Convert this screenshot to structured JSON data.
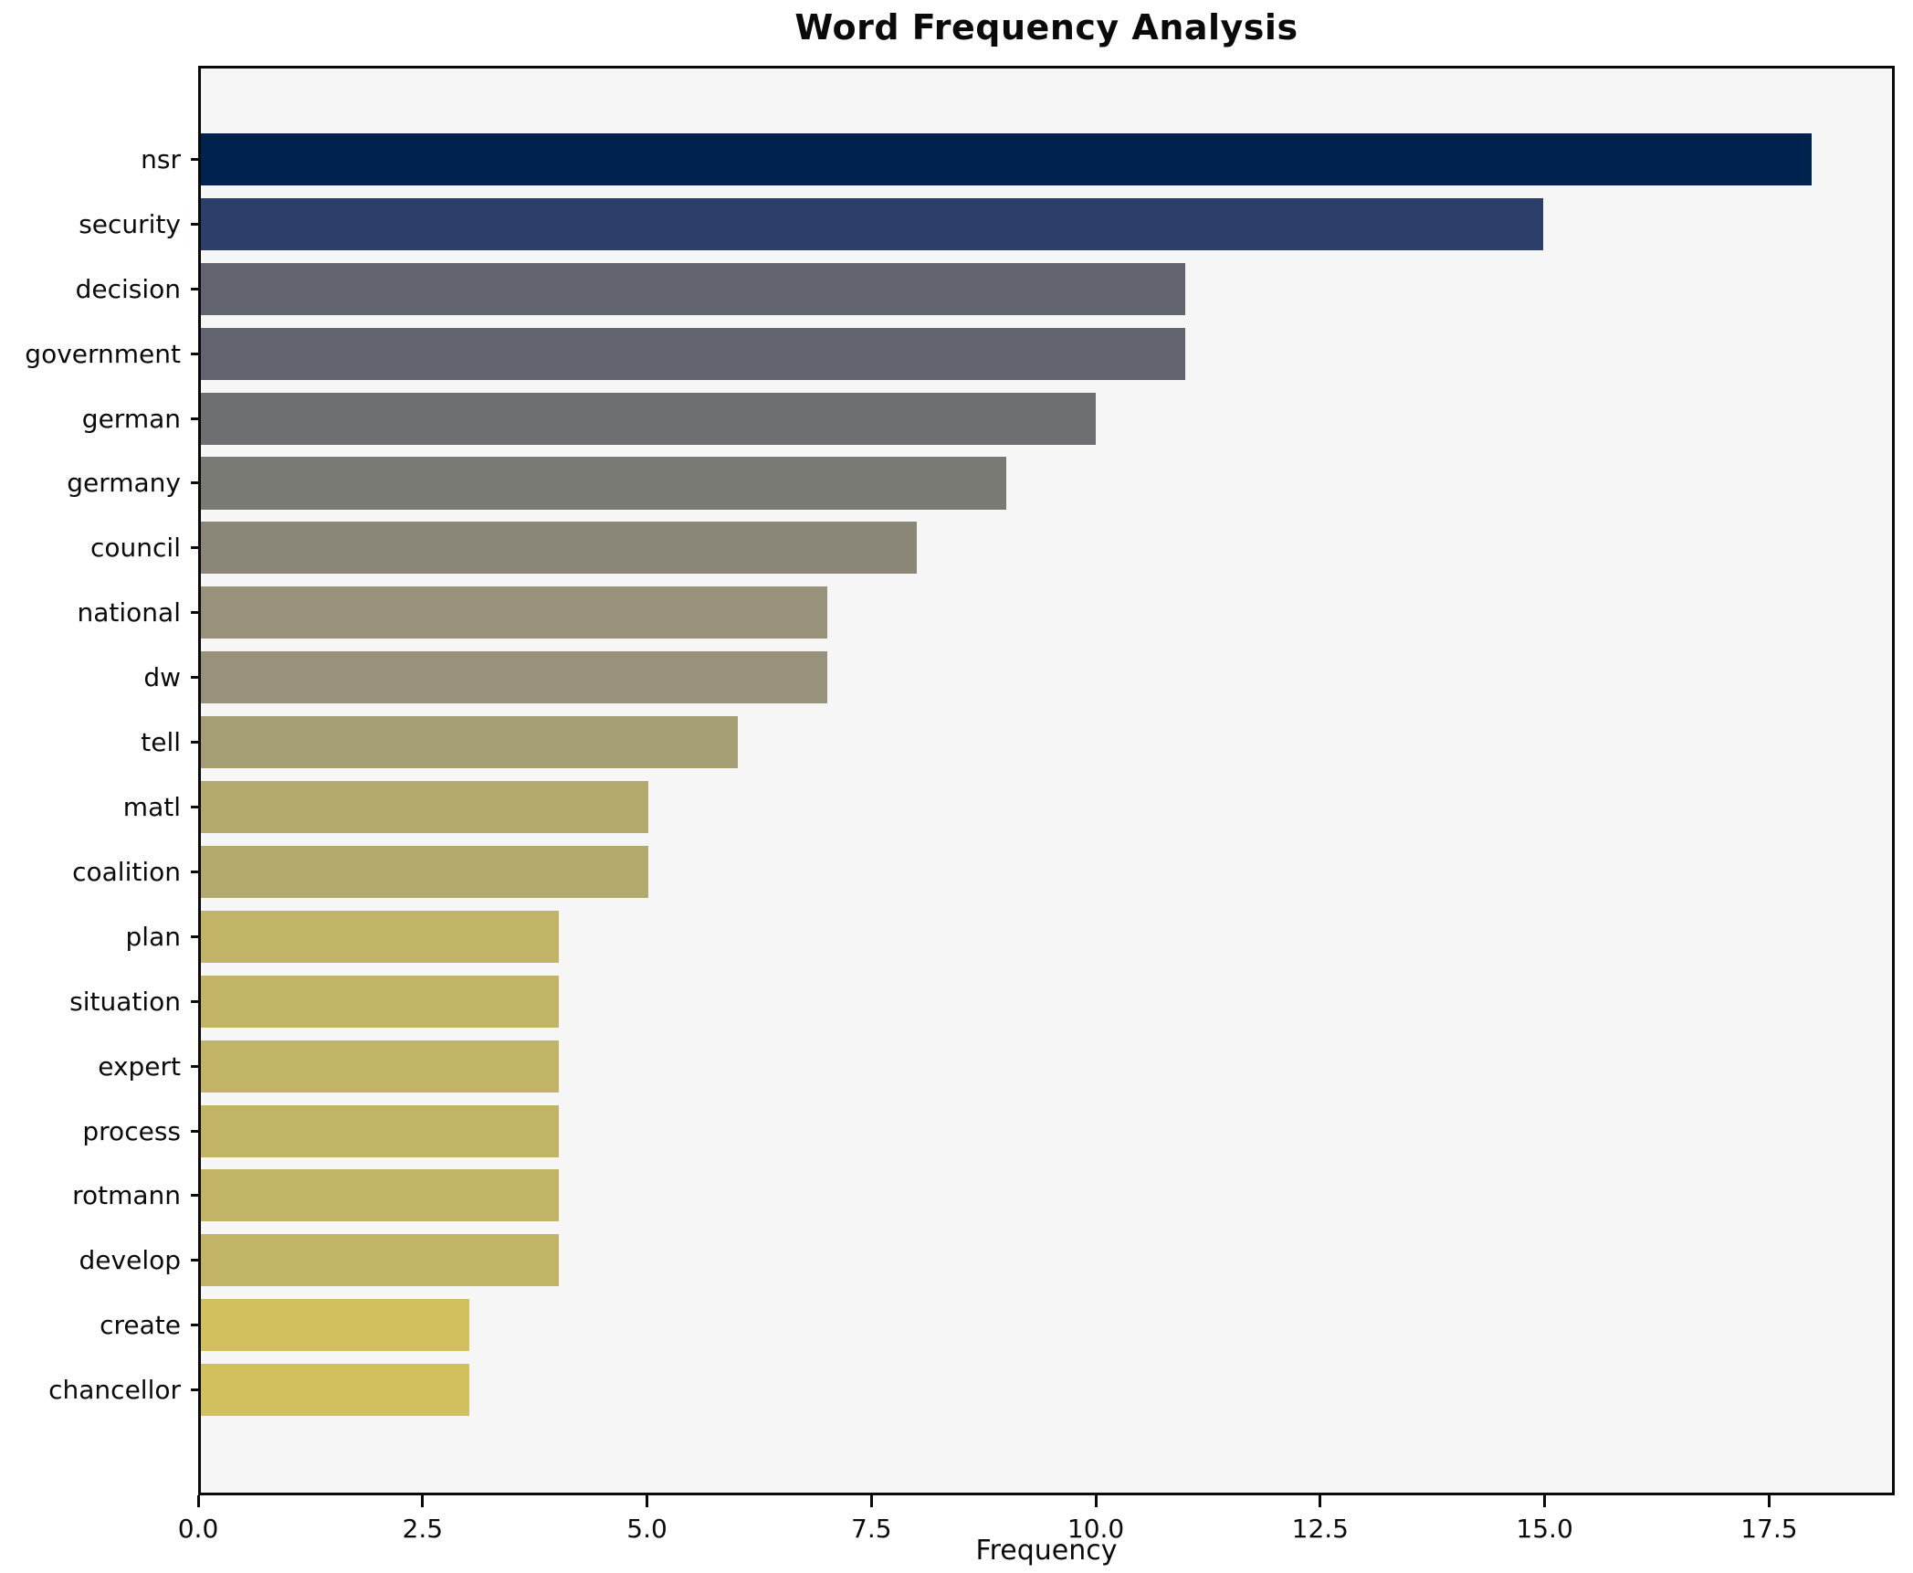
{
  "title": "Word Frequency Analysis",
  "axes": {
    "xlabel": "Frequency",
    "x_tick_labels": [
      "0.0",
      "2.5",
      "5.0",
      "7.5",
      "10.0",
      "12.5",
      "15.0",
      "17.5"
    ],
    "x_tick_values": [
      0,
      2.5,
      5,
      7.5,
      10,
      12.5,
      15,
      17.5
    ]
  },
  "colors": {
    "plot_background": "#f7f6f7",
    "figure_background": "#ffffff",
    "axis_and_text": "#0a0a0a",
    "colormap_note": "cividis-like gradient, darkest for highest frequency"
  },
  "chart_data": {
    "type": "bar",
    "orientation": "horizontal",
    "title": "Word Frequency Analysis",
    "xlabel": "Frequency",
    "ylabel": "",
    "xlim": [
      0,
      18.9
    ],
    "grid": false,
    "legend": false,
    "categories": [
      "nsr",
      "security",
      "decision",
      "government",
      "german",
      "germany",
      "council",
      "national",
      "dw",
      "tell",
      "matl",
      "coalition",
      "plan",
      "situation",
      "expert",
      "process",
      "rotmann",
      "develop",
      "create",
      "chancellor"
    ],
    "values": [
      18,
      15,
      11,
      11,
      10,
      9,
      8,
      7,
      7,
      6,
      5,
      5,
      4,
      4,
      4,
      4,
      4,
      4,
      3,
      3
    ],
    "bar_colors": [
      "#00224e",
      "#2c3e6a",
      "#61646e",
      "#61646e",
      "#6d6e71",
      "#7a7a75",
      "#8a8779",
      "#98927b",
      "#98927b",
      "#a59d74",
      "#b2a96c",
      "#b2a96c",
      "#c1b467",
      "#c1b467",
      "#c1b467",
      "#c1b467",
      "#c1b467",
      "#c1b467",
      "#d2c05f",
      "#d2c05f"
    ]
  }
}
